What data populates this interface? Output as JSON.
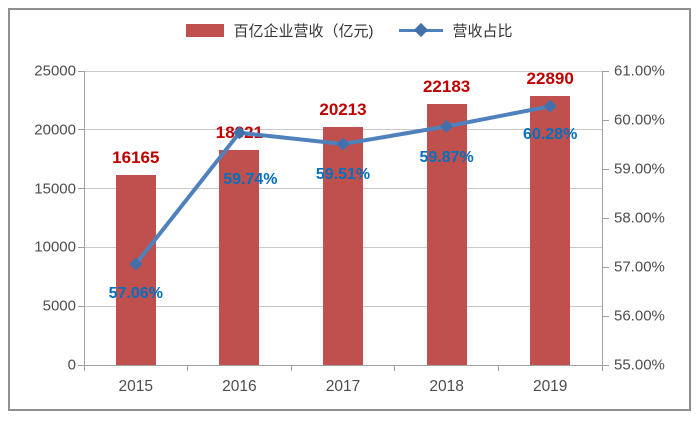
{
  "chart_data": {
    "type": "combo",
    "categories": [
      "2015",
      "2016",
      "2017",
      "2018",
      "2019"
    ],
    "series": [
      {
        "name": "百亿企业营收（亿元)",
        "type": "bar",
        "axis": "left",
        "values": [
          16165,
          18321,
          20213,
          22183,
          22890
        ],
        "value_labels": [
          "16165",
          "18321",
          "20213",
          "22183",
          "22890"
        ]
      },
      {
        "name": "营收占比",
        "type": "line",
        "axis": "right",
        "marker": "diamond",
        "values": [
          57.06,
          59.74,
          59.51,
          59.87,
          60.28
        ],
        "value_labels": [
          "57.06%",
          "59.74%",
          "59.51%",
          "59.87%",
          "60.28%"
        ]
      }
    ],
    "left_axis": {
      "min": 0,
      "max": 25000,
      "step": 5000,
      "tick_labels": [
        "0",
        "5000",
        "10000",
        "15000",
        "20000",
        "25000"
      ]
    },
    "right_axis": {
      "min": 55,
      "max": 61,
      "step": 1,
      "tick_labels": [
        "55.00%",
        "56.00%",
        "57.00%",
        "58.00%",
        "59.00%",
        "60.00%",
        "61.00%"
      ]
    },
    "grid": true,
    "legend_position": "top",
    "title": ""
  },
  "legend": [
    {
      "label": "百亿企业营收（亿元)",
      "swatch": "bar"
    },
    {
      "label": "营收占比",
      "swatch": "line"
    }
  ],
  "colors": {
    "bar_fill": "#C0504D",
    "bar_value_label": "#C00000",
    "line_stroke": "#4F81BD",
    "marker_fill": "#4170AC",
    "line_value_label": "#0070C0",
    "gridline": "#C9C9C9",
    "axis_line": "#A0A0A0",
    "axis_text": "#4D4D4D",
    "frame_border": "#8F8F8F"
  }
}
